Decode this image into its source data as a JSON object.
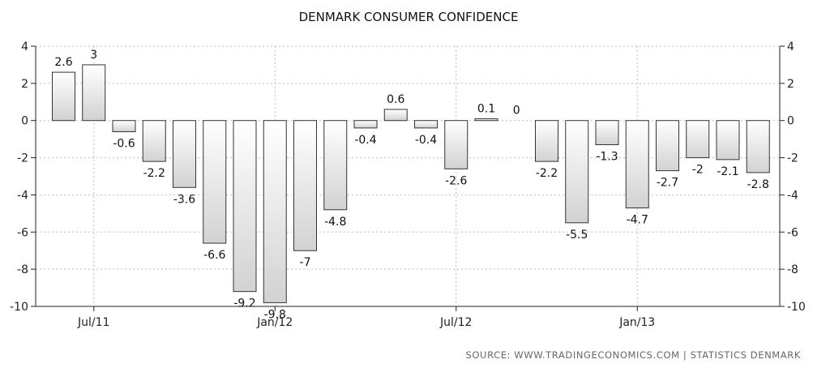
{
  "chart_data": {
    "type": "bar",
    "title": "DENMARK CONSUMER CONFIDENCE",
    "source": "SOURCE: WWW.TRADINGECONOMICS.COM | STATISTICS DENMARK",
    "categories": [
      "2011-06",
      "2011-07",
      "2011-08",
      "2011-09",
      "2011-10",
      "2011-11",
      "2011-12",
      "2012-01",
      "2012-02",
      "2012-03",
      "2012-04",
      "2012-05",
      "2012-06",
      "2012-07",
      "2012-08",
      "2012-09",
      "2012-10",
      "2012-11",
      "2012-12",
      "2013-01",
      "2013-02",
      "2013-03",
      "2013-04",
      "2013-05"
    ],
    "values": [
      2.6,
      3,
      -0.6,
      -2.2,
      -3.6,
      -6.6,
      -9.2,
      -9.8,
      -7,
      -4.8,
      -0.4,
      0.6,
      -0.4,
      -2.6,
      0.1,
      0,
      -2.2,
      -5.5,
      -1.3,
      -4.7,
      -2.7,
      -2,
      -2.1,
      -2.8
    ],
    "data_labels": [
      "2.6",
      "3",
      "-0.6",
      "-2.2",
      "-3.6",
      "-6.6",
      "-9.2",
      "-9.8",
      "-7",
      "-4.8",
      "-0.4",
      "0.6",
      "-0.4",
      "-2.6",
      "0.1",
      "0",
      "-2.2",
      "-5.5",
      "-1.3",
      "-4.7",
      "-2.7",
      "-2",
      "-2.1",
      "-2.8"
    ],
    "ylim": [
      -10,
      4
    ],
    "yticks": [
      4,
      2,
      0,
      -2,
      -4,
      -6,
      -8,
      -10
    ],
    "ytick_labels": [
      "4",
      "2",
      "0",
      "-2",
      "-4",
      "-6",
      "-8",
      "-10"
    ],
    "xtick_labels": [
      {
        "label": "Jul/11",
        "category": "2011-07"
      },
      {
        "label": "Jan/12",
        "category": "2012-01"
      },
      {
        "label": "Jul/12",
        "category": "2012-07"
      },
      {
        "label": "Jan/13",
        "category": "2013-01"
      }
    ],
    "grid": true,
    "legend": "none",
    "colors": {
      "bar_fill_top": "#ffffff",
      "bar_fill_bottom": "#d2d2d2",
      "bar_stroke": "#333333"
    }
  }
}
